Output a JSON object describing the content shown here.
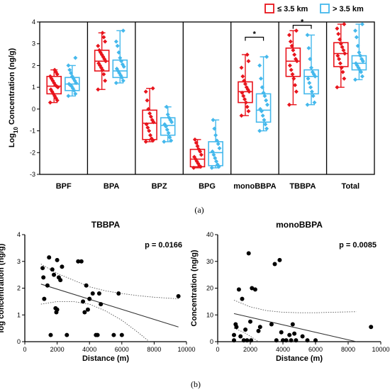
{
  "chart_data": [
    {
      "type": "box",
      "panel_label": "(a)",
      "ylabel_main": "Log",
      "ylabel_sub": "10",
      "ylabel_rest": " Concentration (ng/g)",
      "ylim": [
        -3,
        4
      ],
      "yticks": [
        "4",
        "3",
        "2",
        "1",
        "0",
        "-1",
        "-2",
        "-3"
      ],
      "legend": [
        {
          "name": "≤ 3.5 km",
          "color": "#e8141c"
        },
        {
          "name": "> 3.5 km",
          "color": "#44b8ec"
        }
      ],
      "groups": [
        {
          "category": "BPF",
          "near": {
            "min": 0.3,
            "q1": 0.7,
            "median": 1.05,
            "q3": 1.5,
            "max": 1.8
          },
          "far": {
            "min": 0.6,
            "q1": 0.85,
            "median": 1.15,
            "q3": 1.45,
            "max": 2.0
          },
          "near_points": [
            0.3,
            0.4,
            0.5,
            0.6,
            0.7,
            0.8,
            0.9,
            1.0,
            1.05,
            1.1,
            1.2,
            1.3,
            1.4,
            1.5,
            1.6,
            1.7,
            1.8
          ],
          "far_points": [
            0.6,
            0.7,
            0.85,
            0.95,
            1.05,
            1.1,
            1.15,
            1.2,
            1.3,
            1.4,
            1.5,
            1.65,
            1.8,
            2.0,
            2.35
          ]
        },
        {
          "category": "BPA",
          "near": {
            "min": 0.9,
            "q1": 1.75,
            "median": 2.2,
            "q3": 2.7,
            "max": 3.5
          },
          "far": {
            "min": 1.2,
            "q1": 1.45,
            "median": 1.75,
            "q3": 2.25,
            "max": 3.6
          },
          "near_points": [
            0.9,
            1.3,
            1.6,
            1.8,
            1.9,
            2.0,
            2.1,
            2.2,
            2.3,
            2.4,
            2.5,
            2.6,
            2.7,
            2.9,
            3.1,
            3.3,
            3.5
          ],
          "far_points": [
            1.2,
            1.3,
            1.45,
            1.55,
            1.65,
            1.75,
            1.85,
            1.95,
            2.05,
            2.2,
            2.35,
            2.6,
            2.9,
            3.1,
            3.6
          ]
        },
        {
          "category": "BPZ",
          "near": {
            "min": -1.5,
            "q1": -1.4,
            "median": -0.65,
            "q3": -0.05,
            "max": 0.95
          },
          "far": {
            "min": -1.5,
            "q1": -1.2,
            "median": -0.75,
            "q3": -0.4,
            "max": 0.1
          },
          "near_points": [
            -1.5,
            -1.45,
            -1.35,
            -1.2,
            -1.0,
            -0.85,
            -0.7,
            -0.6,
            -0.5,
            -0.35,
            -0.2,
            0.0,
            0.4,
            0.8,
            0.95
          ],
          "far_points": [
            -1.5,
            -1.45,
            -1.3,
            -1.1,
            -0.95,
            -0.8,
            -0.7,
            -0.6,
            -0.5,
            -0.4,
            -0.25,
            0.1
          ]
        },
        {
          "category": "BPG",
          "near": {
            "min": -2.7,
            "q1": -2.65,
            "median": -2.3,
            "q3": -1.85,
            "max": -1.4
          },
          "far": {
            "min": -2.7,
            "q1": -2.6,
            "median": -2.0,
            "q3": -1.5,
            "max": -0.5
          },
          "near_points": [
            -2.7,
            -2.65,
            -2.6,
            -2.5,
            -2.4,
            -2.3,
            -2.2,
            -2.1,
            -1.95,
            -1.85,
            -1.7,
            -1.55,
            -1.4
          ],
          "far_points": [
            -2.7,
            -2.65,
            -2.55,
            -2.4,
            -2.25,
            -2.1,
            -1.95,
            -1.8,
            -1.6,
            -1.45,
            -1.2,
            -0.9,
            -0.5
          ]
        },
        {
          "category": "monoBBPA",
          "near": {
            "min": -0.3,
            "q1": 0.3,
            "median": 0.8,
            "q3": 1.25,
            "max": 2.5
          },
          "far": {
            "min": -1.0,
            "q1": -0.6,
            "median": -0.05,
            "q3": 0.7,
            "max": 2.4
          },
          "near_points": [
            -0.3,
            -0.1,
            0.1,
            0.3,
            0.45,
            0.6,
            0.75,
            0.8,
            0.9,
            1.0,
            1.15,
            1.3,
            1.5,
            1.9,
            2.2,
            2.5
          ],
          "far_points": [
            -1.0,
            -0.9,
            -0.7,
            -0.5,
            -0.3,
            -0.1,
            0.0,
            0.2,
            0.4,
            0.6,
            0.75,
            1.0,
            1.4,
            2.0,
            2.4
          ]
        },
        {
          "category": "TBBPA",
          "near": {
            "min": 0.2,
            "q1": 1.5,
            "median": 2.2,
            "q3": 2.8,
            "max": 3.6
          },
          "far": {
            "min": 0.2,
            "q1": 0.7,
            "median": 1.5,
            "q3": 1.8,
            "max": 3.4
          },
          "near_points": [
            0.2,
            0.8,
            1.1,
            1.4,
            1.6,
            1.8,
            2.0,
            2.2,
            2.3,
            2.5,
            2.7,
            2.9,
            3.1,
            3.4,
            3.6
          ],
          "far_points": [
            0.2,
            0.3,
            0.6,
            0.8,
            1.0,
            1.2,
            1.4,
            1.5,
            1.6,
            1.7,
            1.9,
            2.3,
            2.8,
            3.4
          ]
        },
        {
          "category": "Total",
          "near": {
            "min": 1.0,
            "q1": 1.95,
            "median": 2.55,
            "q3": 3.05,
            "max": 3.9
          },
          "far": {
            "min": 1.35,
            "q1": 1.8,
            "median": 2.1,
            "q3": 2.45,
            "max": 3.9
          },
          "near_points": [
            1.0,
            1.4,
            1.7,
            1.9,
            2.1,
            2.3,
            2.45,
            2.55,
            2.7,
            2.85,
            3.0,
            3.2,
            3.45,
            3.7,
            3.9
          ],
          "far_points": [
            1.35,
            1.5,
            1.7,
            1.8,
            1.9,
            2.0,
            2.1,
            2.2,
            2.3,
            2.45,
            2.6,
            2.9,
            3.3,
            3.6,
            3.9
          ]
        }
      ],
      "significance": [
        {
          "category": "monoBBPA",
          "label": "*",
          "level": 3.3
        },
        {
          "category": "TBBPA",
          "label": "*",
          "level": 3.85
        }
      ]
    },
    {
      "type": "scatter",
      "title": "TBBPA",
      "xlabel": "Distance (m)",
      "ylabel": "log concentration (ng/g)",
      "xlim": [
        0,
        10000
      ],
      "ylim": [
        0,
        4
      ],
      "xticks": [
        0,
        2000,
        4000,
        6000,
        8000,
        10000
      ],
      "yticks": [
        0,
        1,
        2,
        3,
        4
      ],
      "annotation": "p = 0.0166",
      "points": [
        [
          1100,
          2.75
        ],
        [
          1150,
          2.4
        ],
        [
          1200,
          1.6
        ],
        [
          1400,
          2.1
        ],
        [
          1500,
          3.15
        ],
        [
          1600,
          0.25
        ],
        [
          1700,
          2.7
        ],
        [
          1800,
          2.5
        ],
        [
          1900,
          1.25
        ],
        [
          1950,
          1.1
        ],
        [
          2000,
          1.2
        ],
        [
          2000,
          3.05
        ],
        [
          2100,
          2.4
        ],
        [
          2200,
          2.3
        ],
        [
          2300,
          2.8
        ],
        [
          2600,
          0.25
        ],
        [
          3300,
          3.0
        ],
        [
          3500,
          3.0
        ],
        [
          3600,
          1.5
        ],
        [
          3700,
          1.1
        ],
        [
          3800,
          2.1
        ],
        [
          3900,
          1.2
        ],
        [
          4000,
          1.6
        ],
        [
          4200,
          1.8
        ],
        [
          4400,
          0.25
        ],
        [
          4500,
          0.25
        ],
        [
          4600,
          1.8
        ],
        [
          4700,
          1.4
        ],
        [
          5500,
          0.25
        ],
        [
          5800,
          1.8
        ],
        [
          6000,
          0.25
        ],
        [
          9500,
          1.7
        ]
      ],
      "trend": {
        "x": [
          1000,
          9500
        ],
        "y": [
          2.15,
          0.55
        ]
      },
      "ci_upper": {
        "x": [
          1000,
          2000,
          3000,
          4000,
          5000,
          6000,
          7000,
          8000,
          9500
        ],
        "y": [
          2.9,
          2.55,
          2.3,
          2.05,
          1.9,
          1.8,
          1.72,
          1.66,
          1.6
        ]
      },
      "ci_lower": {
        "x": [
          1000,
          2000,
          3000,
          4000,
          5000,
          6000,
          7000,
          7700
        ],
        "y": [
          1.4,
          1.5,
          1.5,
          1.4,
          1.15,
          0.8,
          0.35,
          0.0
        ]
      }
    },
    {
      "type": "scatter",
      "title": "monoBBPA",
      "xlabel": "Distance (m)",
      "ylabel": "Concentration (ng/g)",
      "xlim": [
        0,
        10000
      ],
      "ylim": [
        0,
        40
      ],
      "xticks": [
        0,
        2000,
        4000,
        6000,
        8000,
        10000
      ],
      "yticks": [
        0,
        10,
        20,
        30,
        40
      ],
      "annotation": "p = 0.0085",
      "points": [
        [
          1000,
          2.5
        ],
        [
          1000,
          0.5
        ],
        [
          1100,
          6.5
        ],
        [
          1150,
          5.5
        ],
        [
          1300,
          19.5
        ],
        [
          1400,
          2.0
        ],
        [
          1500,
          16.0
        ],
        [
          1600,
          0.5
        ],
        [
          1700,
          4.5
        ],
        [
          1800,
          0.5
        ],
        [
          1900,
          33.0
        ],
        [
          2000,
          7.5
        ],
        [
          2050,
          0.5
        ],
        [
          2100,
          20.0
        ],
        [
          2300,
          19.5
        ],
        [
          2500,
          4.0
        ],
        [
          2600,
          5.5
        ],
        [
          3300,
          6.5
        ],
        [
          3500,
          29.0
        ],
        [
          3600,
          0.5
        ],
        [
          3800,
          30.5
        ],
        [
          3900,
          3.5
        ],
        [
          4000,
          0.5
        ],
        [
          4200,
          0.5
        ],
        [
          4400,
          2.5
        ],
        [
          4500,
          0.5
        ],
        [
          4600,
          6.5
        ],
        [
          4700,
          3.0
        ],
        [
          4800,
          0.5
        ],
        [
          5200,
          2.0
        ],
        [
          5500,
          0.5
        ],
        [
          6000,
          0.5
        ],
        [
          9400,
          5.5
        ]
      ],
      "trend": {
        "x": [
          1000,
          8500
        ],
        "y": [
          10.5,
          0.0
        ]
      },
      "ci_upper": {
        "x": [
          1000,
          2000,
          3000,
          4000,
          5000,
          6000,
          7000,
          8500
        ],
        "y": [
          15.5,
          13.0,
          11.6,
          11.0,
          10.8,
          10.8,
          11.0,
          11.2
        ]
      },
      "ci_lower": {
        "x": [
          1000,
          1600,
          2000,
          2500
        ],
        "y": [
          5.0,
          3.5,
          2.0,
          0.0
        ]
      }
    }
  ]
}
